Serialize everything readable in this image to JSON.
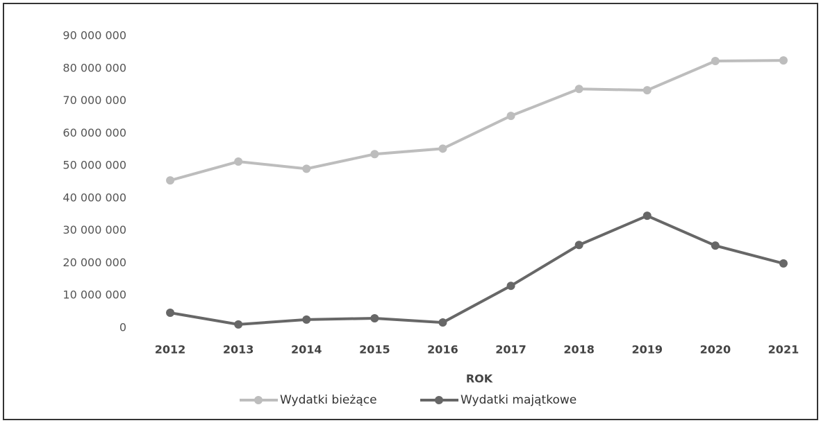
{
  "chart_data": {
    "type": "line",
    "x_label": "ROK",
    "categories": [
      "2012",
      "2013",
      "2014",
      "2015",
      "2016",
      "2017",
      "2018",
      "2019",
      "2020",
      "2021"
    ],
    "series": [
      {
        "name": "Wydatki bieżące",
        "color": "#bdbdbd",
        "values": [
          45500000,
          51300000,
          49100000,
          53600000,
          55300000,
          65400000,
          73700000,
          73300000,
          82300000,
          82500000
        ]
      },
      {
        "name": "Wydatki majątkowe",
        "color": "#676767",
        "values": [
          4700000,
          1100000,
          2600000,
          3000000,
          1700000,
          13000000,
          25600000,
          34600000,
          25400000,
          19900000
        ]
      }
    ],
    "ylim": [
      0,
      90000000
    ],
    "yticks": [
      {
        "value": 0,
        "label": "0"
      },
      {
        "value": 10000000,
        "label": "10 000 000"
      },
      {
        "value": 20000000,
        "label": "20 000 000"
      },
      {
        "value": 30000000,
        "label": "30 000 000"
      },
      {
        "value": 40000000,
        "label": "40 000 000"
      },
      {
        "value": 50000000,
        "label": "50 000 000"
      },
      {
        "value": 60000000,
        "label": "60 000 000"
      },
      {
        "value": 70000000,
        "label": "70 000 000"
      },
      {
        "value": 80000000,
        "label": "80 000 000"
      },
      {
        "value": 90000000,
        "label": "90 000 000"
      }
    ],
    "grid": false,
    "legend": "bottom"
  }
}
